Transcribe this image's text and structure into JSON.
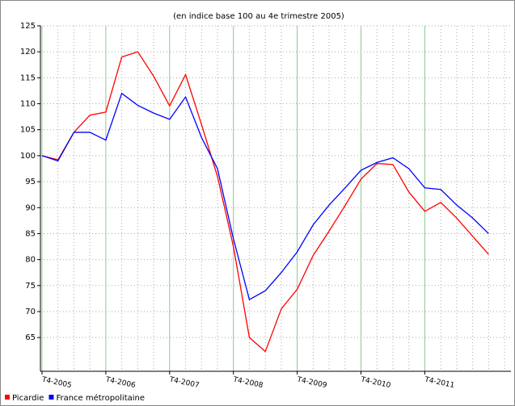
{
  "chart_data": {
    "type": "line",
    "title": "(en indice base 100 au 4e trimestre 2005)",
    "x": [
      0,
      1,
      2,
      3,
      4,
      5,
      6,
      7,
      8,
      9,
      10,
      11,
      12,
      13,
      14,
      15,
      16,
      17,
      18,
      19,
      20,
      21,
      22,
      23,
      24,
      25,
      26,
      27,
      28
    ],
    "series": [
      {
        "name": "Picardie",
        "color": "#ff0000",
        "values": [
          100,
          99.2,
          104.5,
          107.8,
          108.4,
          119,
          120,
          115.3,
          109.6,
          115.6,
          106,
          96,
          82.5,
          65,
          62.3,
          70.5,
          74.3,
          80.8,
          85.5,
          90.4,
          95.5,
          98.5,
          98.3,
          93,
          89.3,
          91,
          88,
          84.5,
          81
        ]
      },
      {
        "name": "France métropolitaine",
        "color": "#0000ff",
        "values": [
          100,
          99,
          104.5,
          104.5,
          103,
          112,
          109.7,
          108.2,
          107,
          111.3,
          103.5,
          97.5,
          84,
          72.3,
          74,
          77.5,
          81.5,
          86.7,
          90.5,
          93.8,
          97.2,
          98.7,
          99.6,
          97.5,
          93.8,
          93.5,
          90.5,
          88,
          85
        ]
      }
    ],
    "xlim": [
      -0.1,
      29.4
    ],
    "xticks": [
      {
        "value": 0,
        "label": "T4-2005"
      },
      {
        "value": 4,
        "label": "T4-2006"
      },
      {
        "value": 8,
        "label": "T4-2007"
      },
      {
        "value": 12,
        "label": "T4-2008"
      },
      {
        "value": 16,
        "label": "T4-2009"
      },
      {
        "value": 20,
        "label": "T4-2010"
      },
      {
        "value": 24,
        "label": "T4-2011"
      }
    ],
    "xminorticks": [
      1,
      2,
      3,
      5,
      6,
      7,
      9,
      10,
      11,
      13,
      14,
      15,
      17,
      18,
      19,
      21,
      22,
      23,
      25,
      26,
      27,
      28,
      29
    ],
    "ylim": [
      58.5,
      125
    ],
    "yticks": [
      65,
      70,
      75,
      80,
      85,
      90,
      95,
      100,
      105,
      110,
      115,
      120,
      125
    ],
    "grid": true,
    "legend": "bottom-left"
  }
}
